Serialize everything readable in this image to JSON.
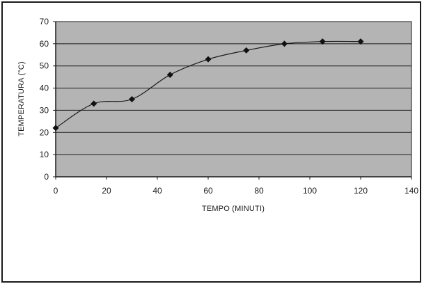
{
  "chart_data": {
    "type": "line",
    "title": "",
    "xlabel": "TEMPO (MINUTI)",
    "ylabel": "TEMPERATURA (°C)",
    "xlim": [
      0,
      140
    ],
    "ylim": [
      0,
      70
    ],
    "xticks": [
      0,
      20,
      40,
      60,
      80,
      100,
      120,
      140
    ],
    "yticks": [
      0,
      10,
      20,
      30,
      40,
      50,
      60,
      70
    ],
    "grid": "horizontal",
    "legend": "none",
    "x": [
      0,
      15,
      30,
      45,
      60,
      75,
      90,
      105,
      120
    ],
    "y": [
      22,
      33,
      35,
      46,
      53,
      57,
      60,
      61,
      61
    ],
    "colors": {
      "plot_background": "#b4b4b4",
      "line": "#1a1a1a",
      "marker": "#111111"
    }
  }
}
